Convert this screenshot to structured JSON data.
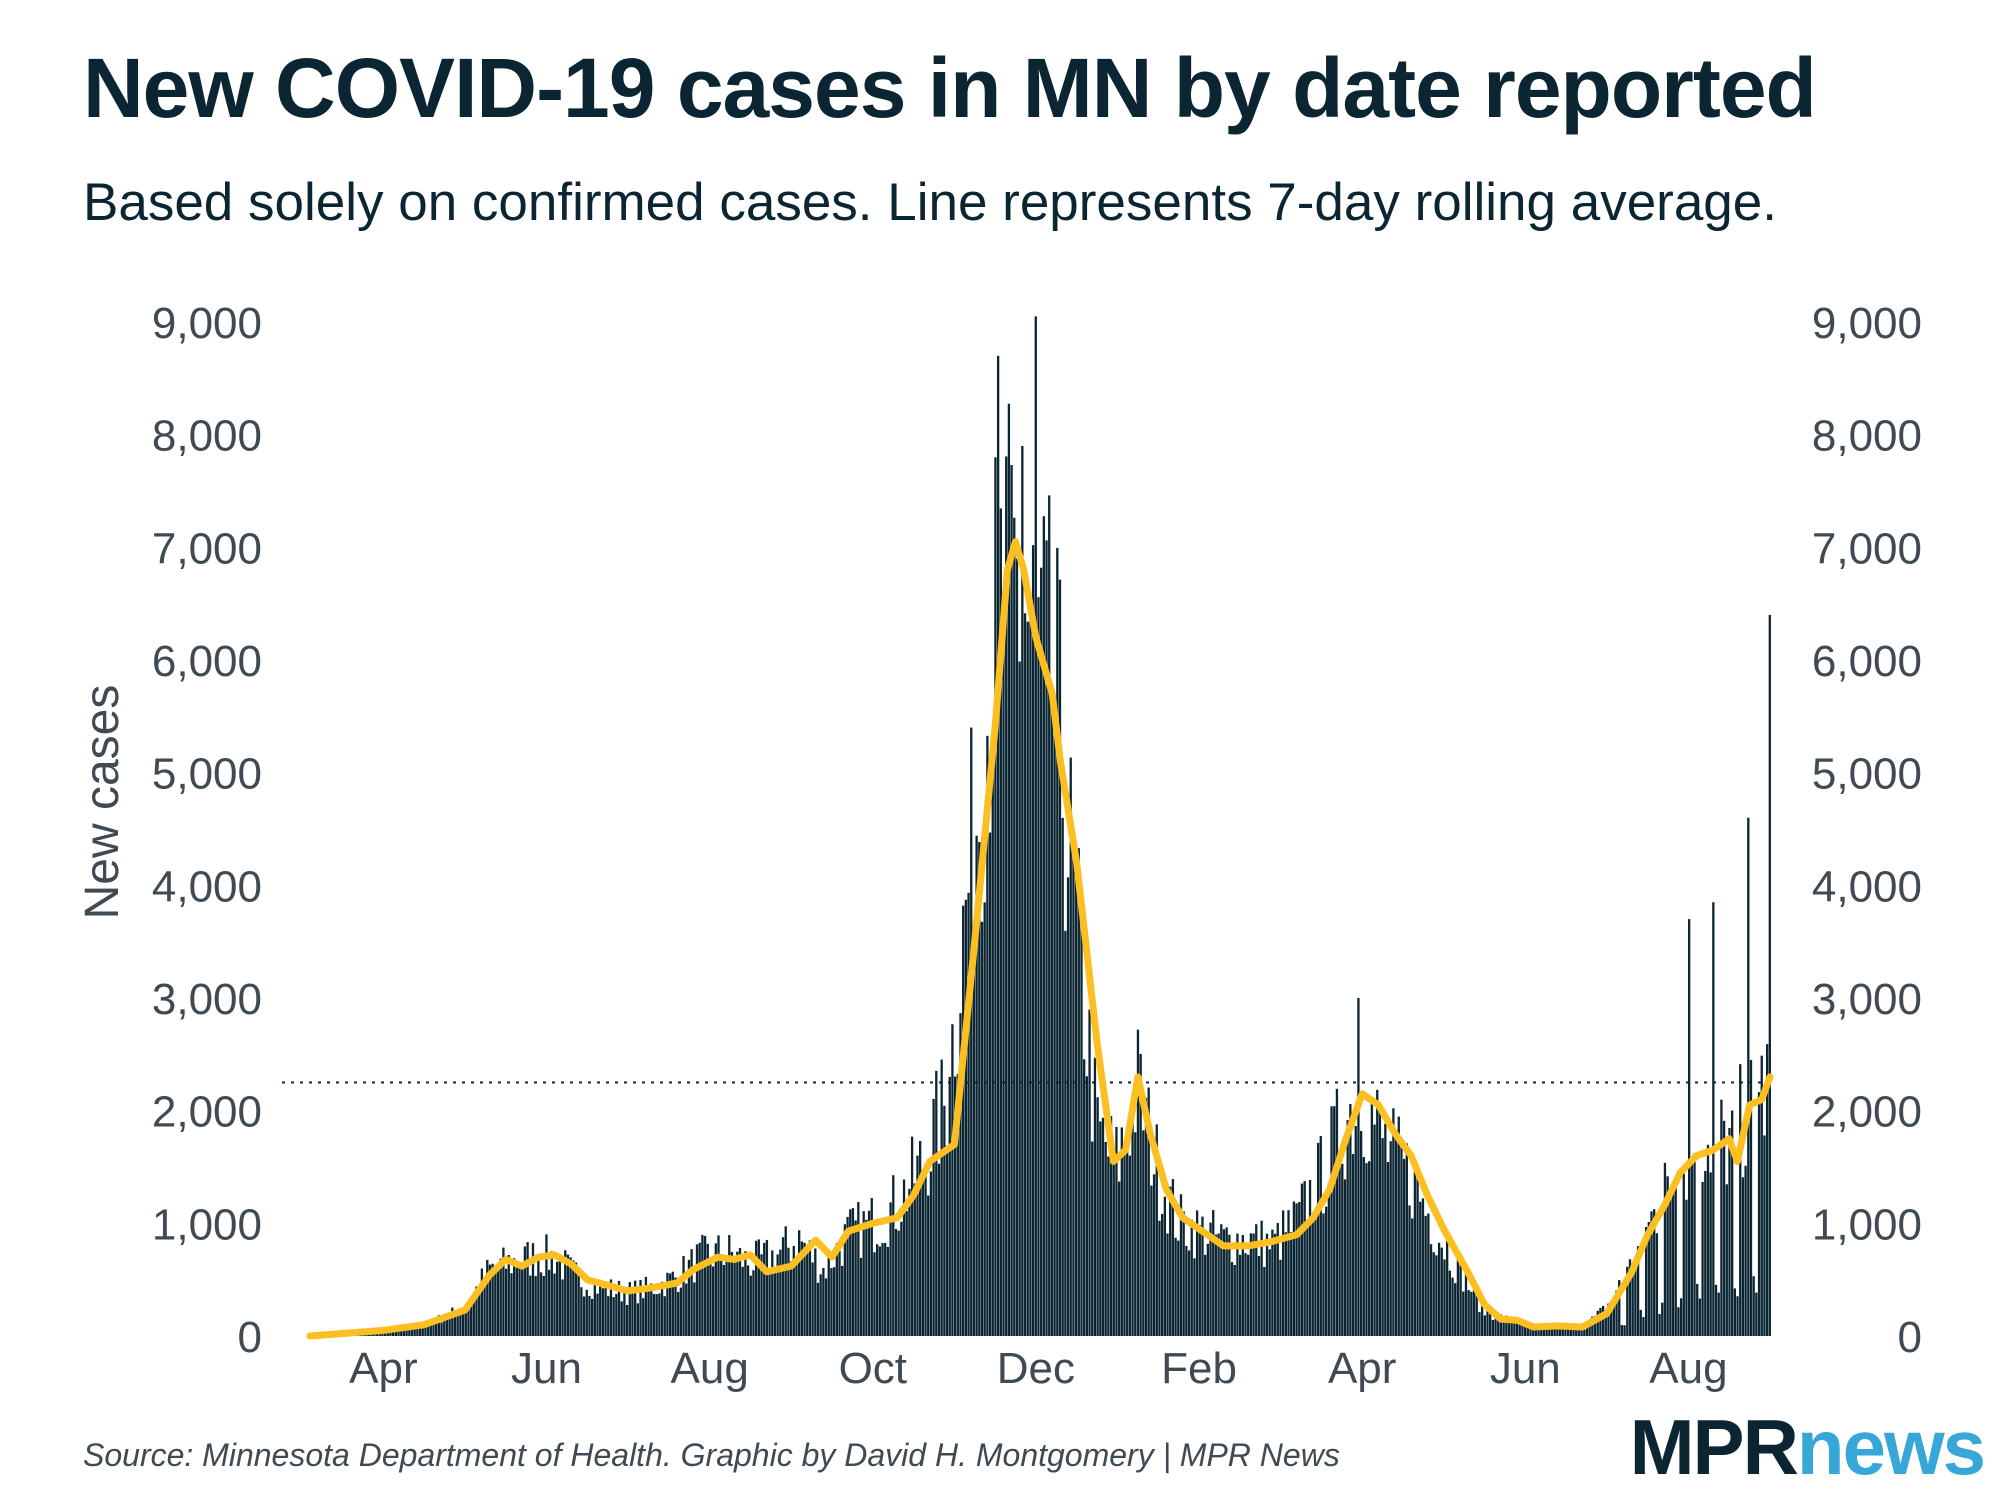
{
  "header": {
    "title": "New COVID-19 cases in MN by date reported",
    "subtitle": "Based solely on confirmed cases. Line represents 7-day rolling average."
  },
  "footer": {
    "source": "Source: Minnesota Department of Health. Graphic by David H. Montgomery | MPR News",
    "logo_part1": "MPR",
    "logo_part2": "news"
  },
  "colors": {
    "bars": "#0b2533",
    "line": "#fbbf22",
    "reference": "#0b2533",
    "logo_news": "#37a7d8"
  },
  "chart_data": {
    "type": "bar",
    "title": "New COVID-19 cases in MN by date reported",
    "ylabel": "New cases",
    "xlabel": "",
    "ylim": [
      0,
      9000
    ],
    "ytick_values": [
      0,
      1000,
      2000,
      3000,
      4000,
      5000,
      6000,
      7000,
      8000,
      9000
    ],
    "ytick_labels": [
      "0",
      "1,000",
      "2,000",
      "3,000",
      "4,000",
      "5,000",
      "6,000",
      "7,000",
      "8,000",
      "9,000"
    ],
    "xtick_labels": [
      "Apr",
      "Jun",
      "Aug",
      "Oct",
      "Dec",
      "Feb",
      "Apr",
      "Jun",
      "Aug"
    ],
    "xtick_months_since_mar2020": [
      1,
      3,
      5,
      7,
      9,
      11,
      13,
      15,
      17
    ],
    "x_axis_start": "2020-03-08",
    "reference_line_value": 2250,
    "series": [
      {
        "name": "Daily new cases",
        "type": "bar",
        "note": "Daily values approximated; shown as [month offset from Mar 2020, cases] anchors",
        "anchors": [
          [
            0.1,
            5
          ],
          [
            1.0,
            40
          ],
          [
            1.5,
            90
          ],
          [
            2.0,
            250
          ],
          [
            2.3,
            580
          ],
          [
            2.6,
            650
          ],
          [
            2.9,
            700
          ],
          [
            3.1,
            690
          ],
          [
            3.4,
            500
          ],
          [
            3.7,
            420
          ],
          [
            4.0,
            380
          ],
          [
            4.3,
            420
          ],
          [
            4.6,
            520
          ],
          [
            4.9,
            690
          ],
          [
            5.2,
            740
          ],
          [
            5.5,
            640
          ],
          [
            5.8,
            700
          ],
          [
            6.1,
            850
          ],
          [
            6.4,
            580
          ],
          [
            6.7,
            890
          ],
          [
            7.0,
            990
          ],
          [
            7.3,
            1150
          ],
          [
            7.6,
            1500
          ],
          [
            7.9,
            2050
          ],
          [
            8.2,
            4100
          ],
          [
            8.5,
            6200
          ],
          [
            8.75,
            6600
          ],
          [
            9.0,
            6100
          ],
          [
            9.25,
            5600
          ],
          [
            9.5,
            3600
          ],
          [
            9.75,
            1800
          ],
          [
            10.0,
            1500
          ],
          [
            10.25,
            2200
          ],
          [
            10.5,
            1450
          ],
          [
            10.75,
            1000
          ],
          [
            11.0,
            930
          ],
          [
            11.3,
            840
          ],
          [
            11.6,
            850
          ],
          [
            11.9,
            800
          ],
          [
            12.2,
            1000
          ],
          [
            12.5,
            1400
          ],
          [
            12.8,
            1900
          ],
          [
            13.0,
            2150
          ],
          [
            13.3,
            1650
          ],
          [
            13.6,
            1400
          ],
          [
            13.9,
            950
          ],
          [
            14.2,
            580
          ],
          [
            14.5,
            220
          ],
          [
            14.8,
            140
          ],
          [
            15.1,
            90
          ],
          [
            15.4,
            70
          ],
          [
            15.7,
            70
          ],
          [
            16.0,
            250
          ],
          [
            16.3,
            600
          ],
          [
            16.6,
            1100
          ],
          [
            16.9,
            1500
          ],
          [
            17.2,
            1750
          ],
          [
            17.5,
            1700
          ],
          [
            17.8,
            2050
          ],
          [
            18.0,
            2200
          ]
        ],
        "notable_spikes": [
          [
            7.95,
            2300
          ],
          [
            8.55,
            8700
          ],
          [
            8.85,
            7900
          ],
          [
            9.0,
            9050
          ],
          [
            12.95,
            3000
          ],
          [
            17.0,
            3700
          ],
          [
            17.3,
            3850
          ],
          [
            17.75,
            4600
          ],
          [
            18.0,
            6400
          ]
        ]
      },
      {
        "name": "7-day rolling average",
        "type": "line",
        "anchors": [
          [
            0.1,
            0
          ],
          [
            1.0,
            50
          ],
          [
            1.5,
            100
          ],
          [
            2.0,
            230
          ],
          [
            2.3,
            540
          ],
          [
            2.5,
            680
          ],
          [
            2.7,
            620
          ],
          [
            2.9,
            700
          ],
          [
            3.1,
            720
          ],
          [
            3.3,
            640
          ],
          [
            3.5,
            500
          ],
          [
            3.8,
            440
          ],
          [
            4.0,
            400
          ],
          [
            4.3,
            430
          ],
          [
            4.6,
            470
          ],
          [
            4.8,
            590
          ],
          [
            5.1,
            700
          ],
          [
            5.3,
            680
          ],
          [
            5.5,
            720
          ],
          [
            5.7,
            570
          ],
          [
            6.0,
            620
          ],
          [
            6.3,
            850
          ],
          [
            6.5,
            700
          ],
          [
            6.7,
            930
          ],
          [
            7.0,
            1000
          ],
          [
            7.3,
            1050
          ],
          [
            7.5,
            1250
          ],
          [
            7.7,
            1550
          ],
          [
            8.0,
            1700
          ],
          [
            8.25,
            3500
          ],
          [
            8.5,
            5400
          ],
          [
            8.65,
            6800
          ],
          [
            8.75,
            7050
          ],
          [
            8.85,
            6800
          ],
          [
            9.0,
            6200
          ],
          [
            9.2,
            5700
          ],
          [
            9.3,
            5100
          ],
          [
            9.5,
            4200
          ],
          [
            9.75,
            2600
          ],
          [
            9.95,
            1550
          ],
          [
            10.1,
            1650
          ],
          [
            10.25,
            2300
          ],
          [
            10.4,
            1800
          ],
          [
            10.6,
            1300
          ],
          [
            10.8,
            1050
          ],
          [
            11.0,
            950
          ],
          [
            11.3,
            800
          ],
          [
            11.6,
            800
          ],
          [
            11.9,
            840
          ],
          [
            12.2,
            900
          ],
          [
            12.4,
            1050
          ],
          [
            12.6,
            1300
          ],
          [
            12.8,
            1750
          ],
          [
            13.0,
            2150
          ],
          [
            13.2,
            2050
          ],
          [
            13.4,
            1800
          ],
          [
            13.6,
            1600
          ],
          [
            13.8,
            1250
          ],
          [
            14.0,
            950
          ],
          [
            14.3,
            560
          ],
          [
            14.5,
            280
          ],
          [
            14.7,
            150
          ],
          [
            14.9,
            140
          ],
          [
            15.1,
            80
          ],
          [
            15.4,
            90
          ],
          [
            15.7,
            80
          ],
          [
            16.0,
            200
          ],
          [
            16.3,
            560
          ],
          [
            16.5,
            900
          ],
          [
            16.7,
            1150
          ],
          [
            16.9,
            1450
          ],
          [
            17.1,
            1600
          ],
          [
            17.3,
            1650
          ],
          [
            17.5,
            1750
          ],
          [
            17.6,
            1550
          ],
          [
            17.75,
            2050
          ],
          [
            17.9,
            2100
          ],
          [
            18.0,
            2300
          ]
        ]
      }
    ]
  }
}
